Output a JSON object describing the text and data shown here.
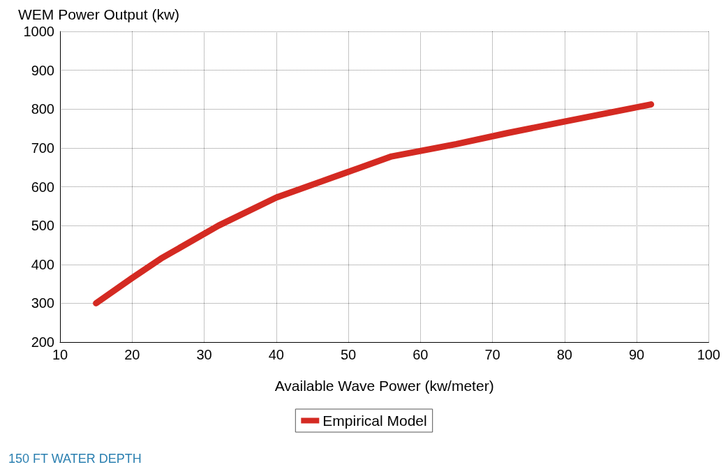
{
  "chart_data": {
    "type": "line",
    "ylabel": "WEM Power Output (kw)",
    "xlabel": "Available Wave Power (kw/meter)",
    "x": [
      15,
      20,
      24,
      32,
      40,
      48,
      56,
      65,
      72,
      80,
      92
    ],
    "series": [
      {
        "name": "Empirical Model",
        "color": "#d42a22",
        "values": [
          300,
          365,
          415,
          500,
          572,
          625,
          678,
          710,
          738,
          768,
          812
        ]
      }
    ],
    "xlim": [
      10,
      100
    ],
    "xticks": [
      10,
      20,
      30,
      40,
      50,
      60,
      70,
      80,
      90,
      100
    ],
    "ylim": [
      200,
      1000
    ],
    "yticks": [
      200,
      300,
      400,
      500,
      600,
      700,
      800,
      900,
      1000
    ],
    "grid": true,
    "legend": "bottom",
    "line_style": "solid",
    "annotations": [
      "150 FT WATER DEPTH"
    ]
  }
}
